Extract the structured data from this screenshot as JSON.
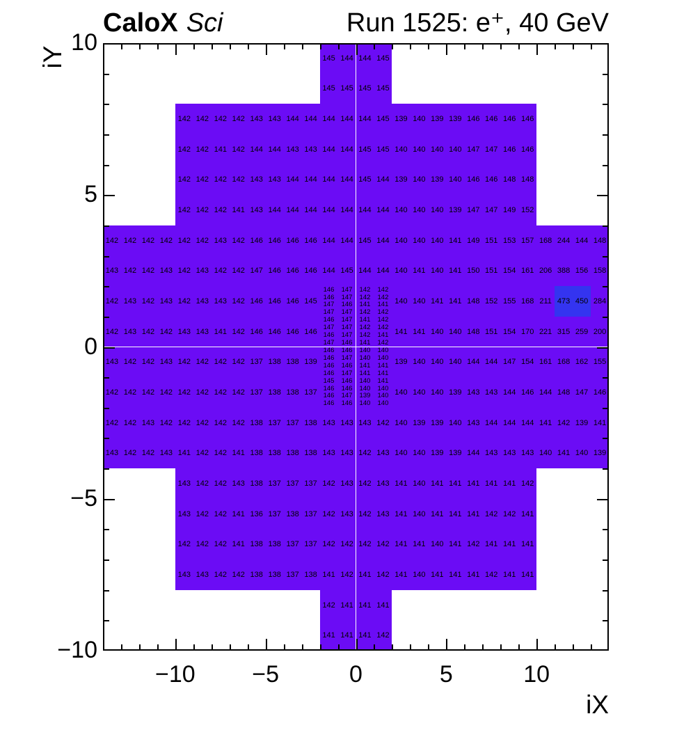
{
  "header": {
    "experiment": "CaloX",
    "detector": "Sci",
    "run_title": "Run 1525: e⁺, 40 GeV"
  },
  "axes": {
    "x": {
      "title": "iX",
      "min": -14,
      "max": 14,
      "major_ticks": [
        -10,
        -5,
        0,
        5,
        10
      ],
      "major_labels": [
        "−10",
        "−5",
        "0",
        "5",
        "10"
      ]
    },
    "y": {
      "title": "iY",
      "min": -10,
      "max": 10,
      "major_ticks": [
        10,
        5,
        0,
        -5,
        -10
      ],
      "major_labels": [
        "10",
        "5",
        "0",
        "−5",
        "−10"
      ]
    }
  },
  "colors": {
    "cell": "#6b0cf5",
    "hot_cell": "#3434f0",
    "text": "#000000",
    "frame": "#000000"
  },
  "chart_data": {
    "type": "heatmap",
    "title": "Run 1525: e+, 40 GeV",
    "xlabel": "iX",
    "ylabel": "iY",
    "xlim": [
      -14,
      14
    ],
    "ylim": [
      -10,
      10
    ],
    "grid": false,
    "hot_threshold": 400,
    "coarse_rows": [
      {
        "iy_top": 10,
        "x_start": -2,
        "values": [
          145,
          144,
          144,
          145
        ]
      },
      {
        "iy_top": 9,
        "x_start": -2,
        "values": [
          145,
          145,
          145,
          145
        ]
      },
      {
        "iy_top": 8,
        "x_start": -10,
        "values": [
          142,
          142,
          142,
          142,
          143,
          143,
          144,
          144,
          144,
          144,
          144,
          145,
          139,
          140,
          139,
          139,
          146,
          146,
          146,
          146
        ]
      },
      {
        "iy_top": 7,
        "x_start": -10,
        "values": [
          142,
          142,
          141,
          142,
          144,
          144,
          143,
          143,
          144,
          144,
          145,
          145,
          140,
          140,
          140,
          140,
          147,
          147,
          146,
          146
        ]
      },
      {
        "iy_top": 6,
        "x_start": -10,
        "values": [
          142,
          142,
          142,
          142,
          143,
          143,
          144,
          144,
          144,
          144,
          145,
          144,
          139,
          140,
          139,
          140,
          146,
          146,
          148,
          148
        ]
      },
      {
        "iy_top": 5,
        "x_start": -10,
        "values": [
          142,
          142,
          142,
          141,
          143,
          144,
          144,
          144,
          144,
          144,
          144,
          144,
          140,
          140,
          140,
          139,
          147,
          147,
          149,
          152
        ]
      },
      {
        "iy_top": 4,
        "x_start": -14,
        "values": [
          142,
          142,
          142,
          142,
          142,
          142,
          143,
          142,
          146,
          146,
          146,
          146,
          144,
          144,
          145,
          144,
          140,
          140,
          140,
          141,
          149,
          151,
          153,
          157,
          168,
          244,
          144,
          148
        ]
      },
      {
        "iy_top": 3,
        "x_start": -14,
        "values": [
          143,
          142,
          142,
          143,
          142,
          143,
          142,
          142,
          147,
          146,
          146,
          146,
          144,
          145,
          144,
          144,
          140,
          141,
          140,
          141,
          150,
          151,
          154,
          161,
          206,
          388,
          156,
          158
        ]
      },
      {
        "iy_top": 2,
        "x_start": -14,
        "values": [
          142,
          143,
          142,
          143,
          142,
          143,
          143,
          142,
          146,
          146,
          146,
          145
        ]
      },
      {
        "iy_top": 2,
        "x_start": 2,
        "values": [
          140,
          140,
          141,
          141,
          148,
          152,
          155,
          168,
          211,
          473,
          450,
          284
        ]
      },
      {
        "iy_top": 1,
        "x_start": -14,
        "values": [
          142,
          143,
          142,
          142,
          143,
          143,
          141,
          142,
          146,
          146,
          146,
          146
        ]
      },
      {
        "iy_top": 1,
        "x_start": 2,
        "values": [
          141,
          141,
          140,
          140,
          148,
          151,
          154,
          170,
          221,
          315,
          259,
          200
        ]
      },
      {
        "iy_top": 0,
        "x_start": -14,
        "values": [
          143,
          142,
          142,
          143,
          142,
          142,
          142,
          142,
          137,
          138,
          138,
          139
        ]
      },
      {
        "iy_top": 0,
        "x_start": 2,
        "values": [
          139,
          140,
          140,
          140,
          144,
          144,
          147,
          154,
          161,
          168,
          162,
          155
        ]
      },
      {
        "iy_top": -1,
        "x_start": -14,
        "values": [
          142,
          142,
          142,
          142,
          142,
          142,
          142,
          142,
          137,
          138,
          138,
          137
        ]
      },
      {
        "iy_top": -1,
        "x_start": 2,
        "values": [
          140,
          140,
          140,
          139,
          143,
          143,
          144,
          146,
          144,
          148,
          147,
          146
        ]
      },
      {
        "iy_top": -2,
        "x_start": -14,
        "values": [
          142,
          142,
          143,
          142,
          142,
          142,
          142,
          142,
          138,
          137,
          137,
          138,
          143,
          143,
          143,
          142,
          140,
          139,
          139,
          140,
          143,
          144,
          144,
          144,
          141,
          142,
          139,
          141
        ]
      },
      {
        "iy_top": -3,
        "x_start": -14,
        "values": [
          143,
          142,
          142,
          143,
          141,
          142,
          142,
          141,
          138,
          138,
          138,
          138,
          143,
          143,
          142,
          143,
          140,
          140,
          139,
          139,
          144,
          143,
          143,
          143,
          140,
          141,
          140,
          139
        ]
      },
      {
        "iy_top": -4,
        "x_start": -10,
        "values": [
          143,
          142,
          142,
          143,
          138,
          137,
          137,
          137,
          142,
          143,
          142,
          143,
          141,
          140,
          141,
          141,
          141,
          141,
          141,
          142
        ]
      },
      {
        "iy_top": -5,
        "x_start": -10,
        "values": [
          143,
          142,
          142,
          141,
          136,
          137,
          138,
          137,
          142,
          143,
          142,
          143,
          141,
          140,
          141,
          141,
          141,
          142,
          142,
          141
        ]
      },
      {
        "iy_top": -6,
        "x_start": -10,
        "values": [
          142,
          142,
          142,
          141,
          138,
          138,
          137,
          137,
          142,
          142,
          142,
          142,
          141,
          141,
          140,
          141,
          142,
          141,
          141,
          141
        ]
      },
      {
        "iy_top": -7,
        "x_start": -10,
        "values": [
          143,
          143,
          142,
          142,
          138,
          138,
          137,
          138,
          141,
          142,
          141,
          142,
          141,
          140,
          141,
          141,
          141,
          142,
          141,
          141
        ]
      },
      {
        "iy_top": -8,
        "x_start": -2,
        "values": [
          142,
          141,
          141,
          141
        ]
      },
      {
        "iy_top": -9,
        "x_start": -2,
        "values": [
          141,
          141,
          141,
          142
        ]
      }
    ],
    "fine_block": {
      "x_start": -2,
      "iy_top": 2,
      "cell_w": 1,
      "cell_h": 0.25,
      "rows": [
        [
          146,
          147,
          142,
          142
        ],
        [
          146,
          147,
          142,
          142
        ],
        [
          147,
          146,
          141,
          141
        ],
        [
          147,
          147,
          142,
          142
        ],
        [
          146,
          147,
          141,
          142
        ],
        [
          147,
          147,
          142,
          142
        ],
        [
          146,
          147,
          142,
          141
        ],
        [
          147,
          146,
          141,
          142
        ],
        [
          146,
          146,
          140,
          140
        ],
        [
          146,
          147,
          140,
          140
        ],
        [
          146,
          146,
          141,
          141
        ],
        [
          146,
          147,
          141,
          141
        ],
        [
          145,
          146,
          140,
          141
        ],
        [
          146,
          146,
          140,
          140
        ],
        [
          146,
          147,
          139,
          140
        ],
        [
          146,
          146,
          140,
          140
        ]
      ]
    }
  }
}
